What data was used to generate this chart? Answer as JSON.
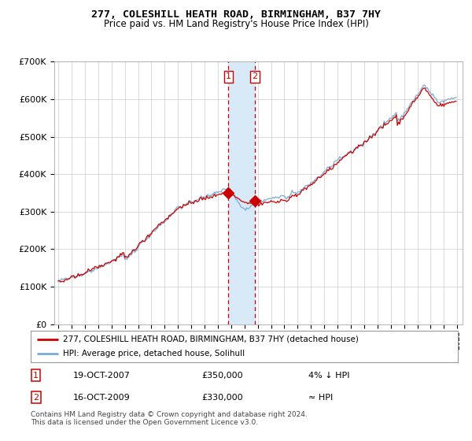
{
  "title": "277, COLESHILL HEATH ROAD, BIRMINGHAM, B37 7HY",
  "subtitle": "Price paid vs. HM Land Registry's House Price Index (HPI)",
  "ylabel_ticks": [
    "£0",
    "£100K",
    "£200K",
    "£300K",
    "£400K",
    "£500K",
    "£600K",
    "£700K"
  ],
  "ylim": [
    0,
    700000
  ],
  "xlim_start": 1994.7,
  "xlim_end": 2025.4,
  "legend_line1": "277, COLESHILL HEATH ROAD, BIRMINGHAM, B37 7HY (detached house)",
  "legend_line2": "HPI: Average price, detached house, Solihull",
  "marker1_date": "19-OCT-2007",
  "marker1_price": "£350,000",
  "marker1_relation": "4% ↓ HPI",
  "marker2_date": "16-OCT-2009",
  "marker2_price": "£330,000",
  "marker2_relation": "≈ HPI",
  "footnote": "Contains HM Land Registry data © Crown copyright and database right 2024.\nThis data is licensed under the Open Government Licence v3.0.",
  "red_color": "#cc0000",
  "blue_color": "#7aadd4",
  "shade_color": "#d8eaf7",
  "bg_color": "#ffffff",
  "grid_color": "#cccccc",
  "sale1_x": 2007.79,
  "sale1_y": 350000,
  "sale2_x": 2009.79,
  "sale2_y": 330000
}
